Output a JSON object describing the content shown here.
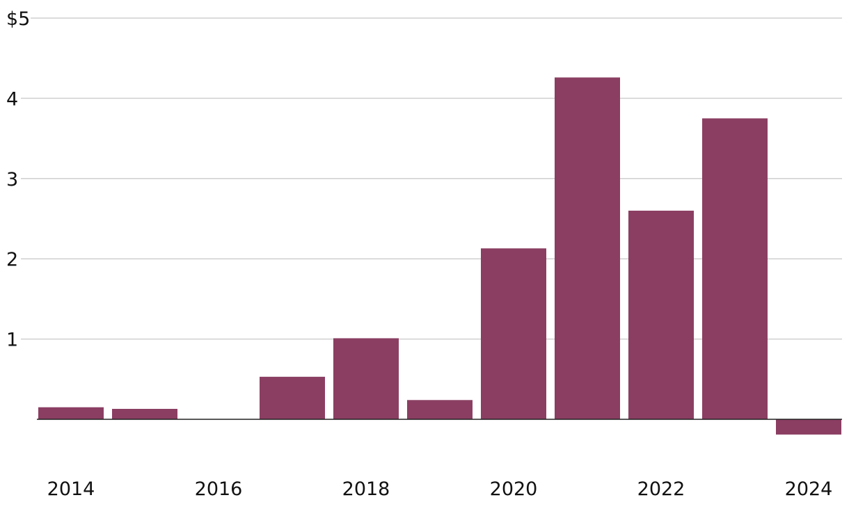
{
  "chart_data": {
    "type": "bar",
    "categories": [
      "2014",
      "2015",
      "2016",
      "2017",
      "2018",
      "2019",
      "2020",
      "2021",
      "2022",
      "2023",
      "2024"
    ],
    "values": [
      0.15,
      0.13,
      0.0,
      0.53,
      1.01,
      0.24,
      2.13,
      4.26,
      2.6,
      3.75,
      -0.19
    ],
    "x_tick_labels": [
      "2014",
      "2016",
      "2018",
      "2020",
      "2022",
      "2024"
    ],
    "y_ticks": [
      {
        "value": 1,
        "label": "1"
      },
      {
        "value": 2,
        "label": "2"
      },
      {
        "value": 3,
        "label": "3"
      },
      {
        "value": 4,
        "label": "4"
      },
      {
        "value": 5,
        "label": "$5"
      }
    ],
    "ylim": [
      -0.5,
      5
    ],
    "grid": true,
    "bar_color": "#8b3e62",
    "title": "",
    "xlabel": "",
    "ylabel": ""
  }
}
